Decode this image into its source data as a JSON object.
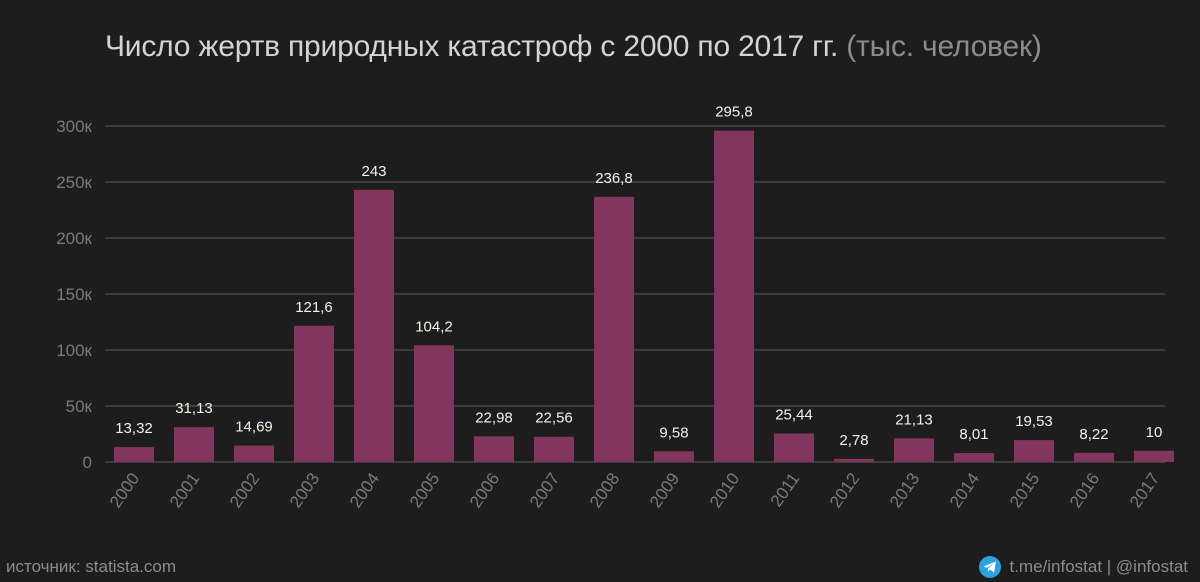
{
  "title": "Число жертв природных катастроф с 2000 по 2017 гг.",
  "subtitle": "(тыс. человек)",
  "footer": {
    "source": "источник: statista.com",
    "channel": "t.me/infostat | @infostat"
  },
  "colors": {
    "background": "#1d1d1e",
    "bar": "#82355d",
    "grid": "#5a5a5a",
    "tick_text": "#7a7a7a",
    "label_text": "#f2f2e6",
    "telegram": "#2aa3df"
  },
  "chart_data": {
    "type": "bar",
    "categories": [
      "2000",
      "2001",
      "2002",
      "2003",
      "2004",
      "2005",
      "2006",
      "2007",
      "2008",
      "2009",
      "2010",
      "2011",
      "2012",
      "2013",
      "2014",
      "2015",
      "2016",
      "2017"
    ],
    "values": [
      13.32,
      31.13,
      14.69,
      121.6,
      243,
      104.2,
      22.98,
      22.56,
      236.8,
      9.58,
      295.8,
      25.44,
      2.78,
      21.13,
      8.01,
      19.53,
      8.22,
      10
    ],
    "value_labels": [
      "13,32",
      "31,13",
      "14,69",
      "121,6",
      "243",
      "104,2",
      "22,98",
      "22,56",
      "236,8",
      "9,58",
      "295,8",
      "25,44",
      "2,78",
      "21,13",
      "8,01",
      "19,53",
      "8,22",
      "10"
    ],
    "y_ticks": [
      0,
      50,
      100,
      150,
      200,
      250,
      300
    ],
    "y_tick_labels": [
      "0",
      "50к",
      "100к",
      "150к",
      "200к",
      "250к",
      "300к"
    ],
    "ylim": [
      0,
      300
    ],
    "grid": true,
    "x_tick_rotation": "rotated"
  }
}
